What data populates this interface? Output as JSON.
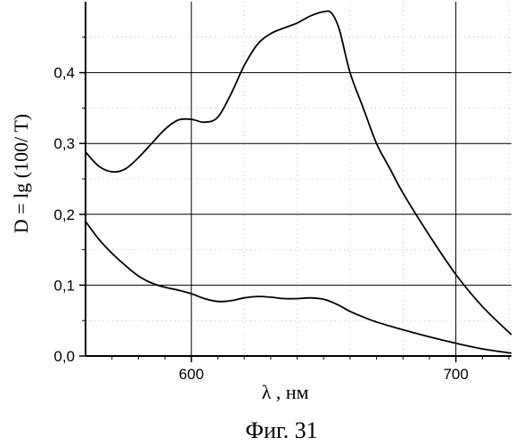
{
  "chart_data": {
    "type": "line",
    "xlabel": "λ , нм",
    "ylabel": "D = lg (100/ T)",
    "caption": "Фиг. 31",
    "xlim": [
      560,
      721
    ],
    "ylim": [
      0,
      0.5
    ],
    "x_ticks": [
      600,
      700
    ],
    "x_tick_labels": [
      "600",
      "700"
    ],
    "y_ticks": [
      0,
      0.1,
      0.2,
      0.3,
      0.4
    ],
    "y_tick_labels": [
      "0,0",
      "0,1",
      "0,2",
      "0,3",
      "0,4"
    ],
    "grid": true,
    "line_color": "#000000",
    "series": [
      {
        "x": [
          560,
          565,
          570,
          575,
          580,
          585,
          590,
          595,
          600,
          605,
          610,
          615,
          620,
          625,
          630,
          635,
          640,
          645,
          650,
          653,
          656,
          660,
          665,
          670,
          675,
          680,
          690,
          700,
          710,
          721
        ],
        "values": [
          0.288,
          0.268,
          0.26,
          0.264,
          0.28,
          0.3,
          0.32,
          0.333,
          0.334,
          0.33,
          0.337,
          0.37,
          0.41,
          0.44,
          0.455,
          0.463,
          0.47,
          0.48,
          0.486,
          0.484,
          0.46,
          0.4,
          0.35,
          0.3,
          0.265,
          0.23,
          0.17,
          0.115,
          0.07,
          0.03
        ]
      },
      {
        "x": [
          560,
          565,
          570,
          575,
          580,
          585,
          590,
          595,
          600,
          605,
          610,
          615,
          620,
          625,
          630,
          635,
          640,
          645,
          650,
          655,
          660,
          665,
          670,
          680,
          690,
          700,
          710,
          721
        ],
        "values": [
          0.19,
          0.165,
          0.145,
          0.128,
          0.113,
          0.103,
          0.097,
          0.093,
          0.088,
          0.081,
          0.077,
          0.078,
          0.082,
          0.084,
          0.083,
          0.081,
          0.081,
          0.082,
          0.08,
          0.073,
          0.063,
          0.055,
          0.048,
          0.037,
          0.027,
          0.018,
          0.01,
          0.004
        ]
      }
    ]
  }
}
